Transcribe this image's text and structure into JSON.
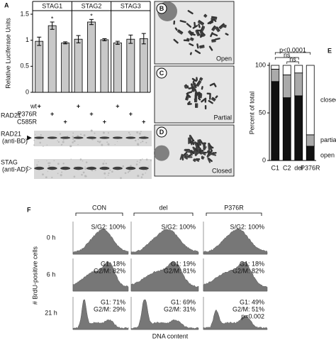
{
  "chart_data": [
    {
      "type": "bar",
      "panel_label": "A",
      "ylabel": "Relative Luciferase Units",
      "categories": [
        "wt",
        "P376R",
        "C585R"
      ],
      "series": [
        {
          "name": "STAG1",
          "color": "#c8c8c8",
          "values": [
            0.98,
            1.28,
            0.95
          ],
          "errors": [
            0.08,
            0.07,
            0.02
          ],
          "significance": [
            null,
            "*",
            null
          ]
        },
        {
          "name": "STAG2",
          "color": "#c8c8c8",
          "values": [
            1.02,
            1.35,
            1.01
          ],
          "errors": [
            0.07,
            0.05,
            0.02
          ],
          "significance": [
            null,
            "*",
            null
          ]
        },
        {
          "name": "STAG3",
          "color": "#c8c8c8",
          "values": [
            0.95,
            1.02,
            1.03
          ],
          "errors": [
            0.03,
            0.08,
            0.1
          ],
          "significance": [
            null,
            null,
            null
          ]
        }
      ],
      "ylim": [
        0,
        1.5
      ],
      "yticks": [
        0,
        0.5,
        1,
        1.5
      ],
      "rows_label": "RAD21",
      "treatment_table": [
        [
          "+",
          null,
          null,
          "+",
          null,
          null,
          "+",
          null,
          null
        ],
        [
          null,
          "+",
          null,
          null,
          "+",
          null,
          null,
          "+",
          null
        ],
        [
          null,
          null,
          "+",
          null,
          null,
          "+",
          null,
          null,
          "+"
        ]
      ]
    },
    {
      "type": "stacked_bar",
      "panel_label": "E",
      "ylabel": "Percent of total",
      "categories": [
        "C1",
        "C2",
        "del",
        "P376R"
      ],
      "series": [
        {
          "name": "open",
          "color": "#111111",
          "values": [
            83,
            66,
            68,
            15
          ]
        },
        {
          "name": "partial",
          "color": "#aaaaaa",
          "values": [
            13,
            24,
            24,
            12
          ]
        },
        {
          "name": "closed",
          "color": "#ffffff",
          "values": [
            4,
            10,
            8,
            73
          ]
        }
      ],
      "n": [
        36,
        54,
        53,
        45
      ],
      "annotations": [
        "p<0.0001",
        "ns",
        "ns"
      ],
      "ylim": [
        0,
        100
      ],
      "yticks": [
        0,
        50,
        100
      ]
    }
  ],
  "blots": [
    {
      "label": "RAD21",
      "sublabel": "(anti-BD)",
      "marker": "▶"
    },
    {
      "label": "STAG",
      "sublabel": "(anti-AD)",
      "marker": "▷"
    }
  ],
  "micrographs": [
    {
      "panel_label": "B",
      "caption": "Open"
    },
    {
      "panel_label": "C",
      "caption": "Partial"
    },
    {
      "panel_label": "D",
      "caption": "Closed"
    }
  ],
  "flow": {
    "panel_label": "F",
    "columns": [
      "CON",
      "del",
      "P376R"
    ],
    "rows": [
      "0 h",
      "6 h",
      "21 h"
    ],
    "ylabel": "# BrdU-positive cells",
    "xlabel": "DNA content",
    "cells": [
      [
        [
          "S/G2: 100%"
        ],
        [
          "S/G2: 100%"
        ],
        [
          "S/G2: 100%"
        ]
      ],
      [
        [
          "G1: 18%",
          "G2/M: 82%"
        ],
        [
          "G1: 19%",
          "G2/M: 81%"
        ],
        [
          "G1: 18%",
          "G2/M: 82%"
        ]
      ],
      [
        [
          "G1: 71%",
          "G2/M: 29%"
        ],
        [
          "G1: 69%",
          "G2/M: 31%"
        ],
        [
          "G1: 49%",
          "G2/M: 51%",
          "p=0.002"
        ]
      ]
    ]
  }
}
